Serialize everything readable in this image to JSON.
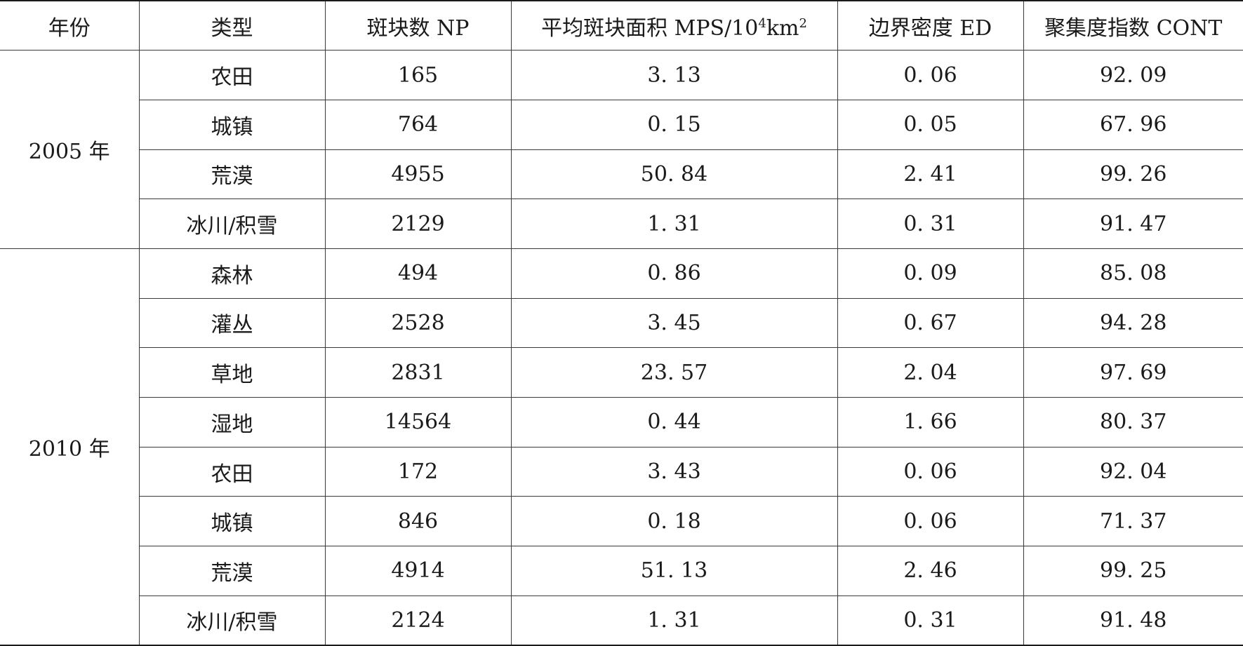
{
  "table": {
    "header": {
      "year": "年份",
      "type": "类型",
      "np": "斑块数 NP",
      "mps_prefix": "平均斑块面积 MPS/10",
      "mps_sup1": "4",
      "mps_unit": "km",
      "mps_sup2": "2",
      "ed": "边界密度 ED",
      "cont": "聚集度指数 CONT"
    },
    "groups": [
      {
        "year": "2005 年",
        "rows": [
          {
            "type": "农田",
            "np": "165",
            "mps": "3. 13",
            "ed": "0. 06",
            "cont": "92. 09"
          },
          {
            "type": "城镇",
            "np": "764",
            "mps": "0. 15",
            "ed": "0. 05",
            "cont": "67. 96"
          },
          {
            "type": "荒漠",
            "np": "4955",
            "mps": "50. 84",
            "ed": "2. 41",
            "cont": "99. 26"
          },
          {
            "type": "冰川/积雪",
            "np": "2129",
            "mps": "1. 31",
            "ed": "0. 31",
            "cont": "91. 47"
          }
        ]
      },
      {
        "year": "2010 年",
        "rows": [
          {
            "type": "森林",
            "np": "494",
            "mps": "0. 86",
            "ed": "0. 09",
            "cont": "85. 08"
          },
          {
            "type": "灌丛",
            "np": "2528",
            "mps": "3. 45",
            "ed": "0. 67",
            "cont": "94. 28"
          },
          {
            "type": "草地",
            "np": "2831",
            "mps": "23. 57",
            "ed": "2. 04",
            "cont": "97. 69"
          },
          {
            "type": "湿地",
            "np": "14564",
            "mps": "0. 44",
            "ed": "1. 66",
            "cont": "80. 37"
          },
          {
            "type": "农田",
            "np": "172",
            "mps": "3. 43",
            "ed": "0. 06",
            "cont": "92. 04"
          },
          {
            "type": "城镇",
            "np": "846",
            "mps": "0. 18",
            "ed": "0. 06",
            "cont": "71. 37"
          },
          {
            "type": "荒漠",
            "np": "4914",
            "mps": "51. 13",
            "ed": "2. 46",
            "cont": "99. 25"
          },
          {
            "type": "冰川/积雪",
            "np": "2124",
            "mps": "1. 31",
            "ed": "0. 31",
            "cont": "91. 48"
          }
        ]
      }
    ]
  }
}
